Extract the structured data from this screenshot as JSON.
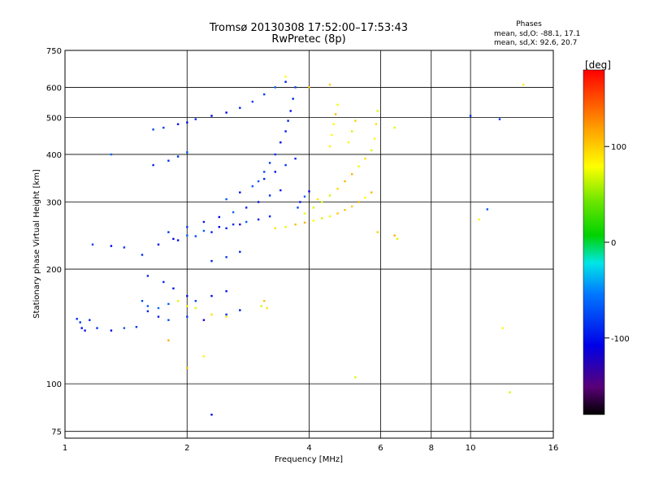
{
  "chart_data": {
    "type": "scatter",
    "title": "Tromsø 20130308 17:52:00–17:53:43",
    "subtitle": "RwPretec (8p)",
    "xlabel": "Frequency [MHz]",
    "ylabel": "Stationary phase Virtual Height [km]",
    "x_scale": "log",
    "y_scale": "log",
    "xlim": [
      1,
      16
    ],
    "ylim": [
      72,
      750
    ],
    "x_ticks": [
      "1",
      "2",
      "4",
      "6",
      "8",
      "10",
      "16"
    ],
    "y_ticks": [
      "75",
      "100",
      "200",
      "300",
      "400",
      "500",
      "600",
      "750"
    ],
    "grid": true,
    "stats": {
      "heading": "Phases",
      "line_o": "mean, sd,O: -88.1, 17.1",
      "line_x": "mean, sd,X:  92.6, 20.7"
    },
    "colorbar": {
      "label": "[deg]",
      "range": [
        -180,
        180
      ],
      "ticks": [
        "100",
        "0",
        "-100"
      ]
    },
    "series": [
      {
        "mode": "O",
        "phase_mean_deg": -88.1,
        "points": [
          [
            1.07,
            148
          ],
          [
            1.09,
            145
          ],
          [
            1.1,
            140
          ],
          [
            1.12,
            138
          ],
          [
            1.15,
            147
          ],
          [
            1.2,
            140
          ],
          [
            1.3,
            138
          ],
          [
            1.4,
            140
          ],
          [
            1.5,
            141
          ],
          [
            1.6,
            155
          ],
          [
            1.7,
            150
          ],
          [
            1.8,
            147
          ],
          [
            2.0,
            150
          ],
          [
            2.2,
            147
          ],
          [
            2.5,
            152
          ],
          [
            2.7,
            156
          ],
          [
            1.17,
            232
          ],
          [
            1.3,
            230
          ],
          [
            1.4,
            228
          ],
          [
            1.55,
            218
          ],
          [
            1.7,
            232
          ],
          [
            1.85,
            240
          ],
          [
            2.0,
            245
          ],
          [
            2.2,
            252
          ],
          [
            2.4,
            258
          ],
          [
            2.6,
            262
          ],
          [
            2.8,
            266
          ],
          [
            3.0,
            270
          ],
          [
            3.2,
            275
          ],
          [
            1.8,
            250
          ],
          [
            2.0,
            258
          ],
          [
            2.2,
            266
          ],
          [
            2.4,
            274
          ],
          [
            2.6,
            282
          ],
          [
            2.8,
            290
          ],
          [
            3.0,
            300
          ],
          [
            3.2,
            312
          ],
          [
            3.4,
            322
          ],
          [
            1.9,
            238
          ],
          [
            2.1,
            244
          ],
          [
            2.3,
            250
          ],
          [
            2.5,
            256
          ],
          [
            2.7,
            262
          ],
          [
            2.5,
            305
          ],
          [
            2.7,
            318
          ],
          [
            2.9,
            330
          ],
          [
            3.1,
            345
          ],
          [
            3.3,
            360
          ],
          [
            3.5,
            375
          ],
          [
            3.7,
            390
          ],
          [
            1.65,
            465
          ],
          [
            1.75,
            470
          ],
          [
            1.9,
            480
          ],
          [
            2.0,
            485
          ],
          [
            2.1,
            495
          ],
          [
            2.3,
            505
          ],
          [
            2.5,
            515
          ],
          [
            2.7,
            530
          ],
          [
            2.9,
            550
          ],
          [
            3.1,
            575
          ],
          [
            3.3,
            600
          ],
          [
            3.5,
            620
          ],
          [
            1.65,
            375
          ],
          [
            1.8,
            385
          ],
          [
            1.9,
            395
          ],
          [
            2.0,
            405
          ],
          [
            1.6,
            192
          ],
          [
            1.75,
            185
          ],
          [
            1.85,
            178
          ],
          [
            2.0,
            170
          ],
          [
            2.1,
            165
          ],
          [
            2.3,
            170
          ],
          [
            2.5,
            175
          ],
          [
            1.55,
            165
          ],
          [
            1.6,
            160
          ],
          [
            1.7,
            158
          ],
          [
            1.8,
            162
          ],
          [
            3.0,
            340
          ],
          [
            3.1,
            360
          ],
          [
            3.2,
            380
          ],
          [
            3.3,
            400
          ],
          [
            3.4,
            430
          ],
          [
            3.5,
            460
          ],
          [
            3.55,
            490
          ],
          [
            3.6,
            520
          ],
          [
            3.65,
            560
          ],
          [
            3.7,
            600
          ],
          [
            3.75,
            290
          ],
          [
            3.8,
            300
          ],
          [
            3.9,
            310
          ],
          [
            4.0,
            320
          ],
          [
            2.3,
            210
          ],
          [
            2.5,
            215
          ],
          [
            2.7,
            222
          ],
          [
            2.3,
            83
          ],
          [
            1.3,
            400
          ],
          [
            10.0,
            505
          ],
          [
            11.0,
            287
          ],
          [
            11.8,
            495
          ]
        ]
      },
      {
        "mode": "X",
        "phase_mean_deg": 92.6,
        "points": [
          [
            3.3,
            256
          ],
          [
            3.5,
            258
          ],
          [
            3.7,
            262
          ],
          [
            3.9,
            265
          ],
          [
            4.1,
            268
          ],
          [
            4.3,
            272
          ],
          [
            4.5,
            275
          ],
          [
            4.7,
            280
          ],
          [
            4.9,
            286
          ],
          [
            5.1,
            292
          ],
          [
            5.3,
            300
          ],
          [
            5.5,
            308
          ],
          [
            5.7,
            318
          ],
          [
            3.9,
            280
          ],
          [
            4.1,
            290
          ],
          [
            4.3,
            300
          ],
          [
            4.5,
            312
          ],
          [
            4.7,
            325
          ],
          [
            4.9,
            340
          ],
          [
            5.1,
            355
          ],
          [
            5.3,
            372
          ],
          [
            5.5,
            390
          ],
          [
            5.7,
            410
          ],
          [
            5.8,
            440
          ],
          [
            5.85,
            480
          ],
          [
            5.9,
            520
          ],
          [
            4.5,
            420
          ],
          [
            4.55,
            450
          ],
          [
            4.6,
            480
          ],
          [
            4.65,
            510
          ],
          [
            4.7,
            540
          ],
          [
            5.0,
            430
          ],
          [
            5.1,
            460
          ],
          [
            5.2,
            490
          ],
          [
            1.9,
            165
          ],
          [
            2.0,
            160
          ],
          [
            2.1,
            158
          ],
          [
            2.3,
            152
          ],
          [
            2.5,
            150
          ],
          [
            3.05,
            160
          ],
          [
            3.1,
            165
          ],
          [
            3.15,
            158
          ],
          [
            2.0,
            110
          ],
          [
            2.2,
            118
          ],
          [
            1.8,
            130
          ],
          [
            4.0,
            600
          ],
          [
            4.5,
            610
          ],
          [
            3.5,
            640
          ],
          [
            13.5,
            610
          ],
          [
            5.2,
            104
          ],
          [
            6.5,
            245
          ],
          [
            6.5,
            470
          ],
          [
            6.6,
            240
          ],
          [
            10.5,
            270
          ],
          [
            12.0,
            140
          ],
          [
            12.5,
            95
          ],
          [
            5.9,
            250
          ],
          [
            4.2,
            305
          ]
        ]
      }
    ]
  }
}
